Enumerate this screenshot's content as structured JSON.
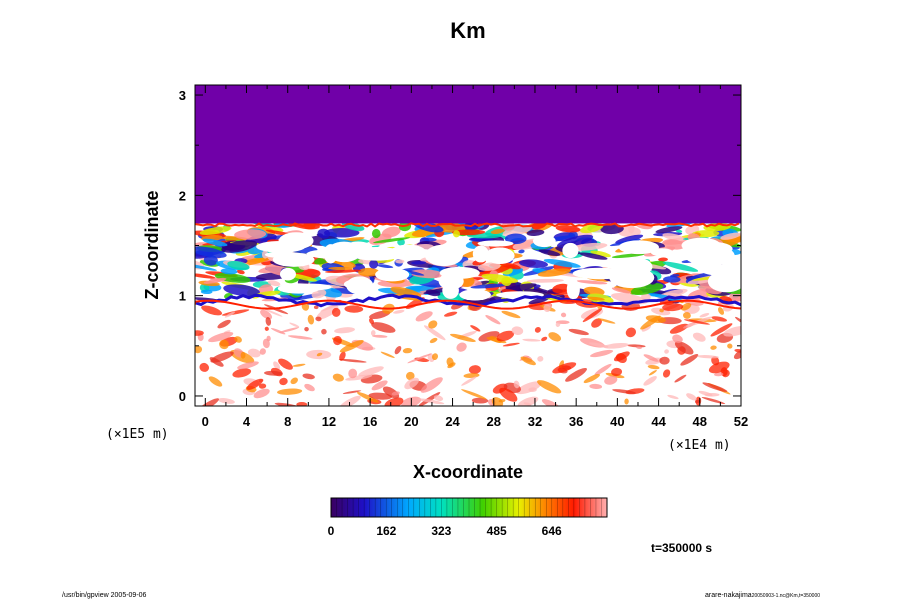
{
  "chart_data": {
    "type": "heatmap",
    "title": "Km",
    "xlabel": "X-coordinate",
    "ylabel": "Z-coordinate",
    "x_multiplier": "(×1E4 m)",
    "y_multiplier": "(×1E5 m)",
    "xlim": [
      -1,
      52
    ],
    "ylim": [
      -0.1,
      3.1
    ],
    "x_ticks": [
      "0",
      "4",
      "8",
      "12",
      "16",
      "20",
      "24",
      "28",
      "32",
      "36",
      "40",
      "44",
      "48",
      "52"
    ],
    "y_ticks": [
      "0",
      "1",
      "2",
      "3"
    ],
    "colorbar": {
      "ticks": [
        "0",
        "162",
        "323",
        "485",
        "646"
      ],
      "range": [
        0,
        808
      ]
    },
    "time_label": "t=350000 s",
    "footer_left": "/usr/bin/gpview 2005-09-06",
    "footer_right_main": "arare-nakajima",
    "footer_right_sub": "20050903-1.nc@Km,t=350000",
    "fields": {
      "top_layer_value": 0,
      "top_layer_base_z": 1.72,
      "turbulent_layer_z": [
        0.95,
        1.72
      ],
      "mid_band_z": 0.95,
      "lower_layer_z": [
        -0.1,
        0.95
      ]
    }
  }
}
